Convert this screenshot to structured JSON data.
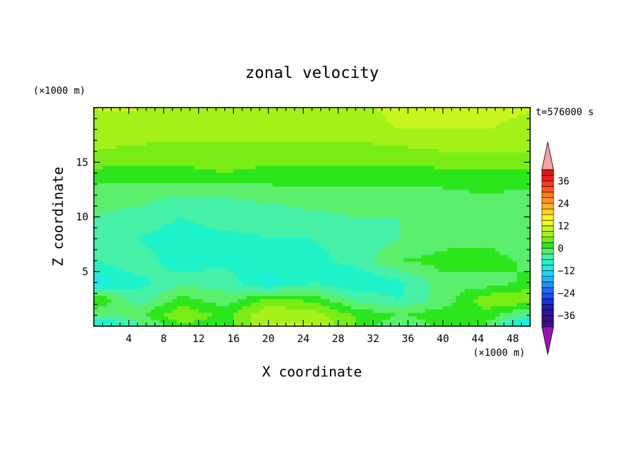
{
  "chart_data": {
    "type": "heatmap",
    "title": "zonal velocity",
    "xlabel": "X coordinate",
    "ylabel": "Z coordinate",
    "x_unit": "(×1000 m)",
    "y_unit": "(×1000 m)",
    "time_label": "t=576000 s",
    "xlim": [
      0,
      50
    ],
    "ylim": [
      0,
      20
    ],
    "x_ticks": [
      4,
      8,
      12,
      16,
      20,
      24,
      28,
      32,
      36,
      40,
      44,
      48
    ],
    "y_ticks": [
      5,
      10,
      15
    ],
    "colorbar": {
      "levels": [
        -42,
        -39,
        -36,
        -33,
        -30,
        -27,
        -24,
        -21,
        -18,
        -15,
        -12,
        -9,
        -6,
        -3,
        0,
        3,
        6,
        9,
        12,
        15,
        18,
        21,
        24,
        27,
        30,
        33,
        36,
        39,
        42
      ],
      "tick_labels": [
        "36",
        "24",
        "12",
        "0",
        "−12",
        "−24",
        "−36"
      ],
      "tick_values": [
        36,
        24,
        12,
        0,
        -12,
        -24,
        -36
      ],
      "extend": "both",
      "over_color": "#f4a3a3",
      "under_color": "#9a13b0"
    },
    "field": {
      "x_coords": [
        0,
        5,
        10,
        15,
        20,
        25,
        30,
        35,
        40,
        45,
        50
      ],
      "z_coords": [
        0.3,
        1,
        2.5,
        4,
        6,
        8,
        10,
        12,
        14,
        16,
        18,
        19.8
      ],
      "values": [
        [
          -10,
          -4,
          3,
          1,
          9,
          9,
          3,
          -3,
          1,
          0,
          -12
        ],
        [
          -3,
          -1,
          6,
          2,
          9,
          8,
          3,
          0,
          2,
          2,
          -5
        ],
        [
          4,
          -5,
          1,
          -2,
          4,
          2,
          -4,
          -6,
          -2,
          5,
          6
        ],
        [
          -11,
          -7,
          -4,
          -4,
          -10,
          -6,
          -9,
          -7,
          -1,
          -2,
          1
        ],
        [
          -6,
          -4,
          -8,
          -7,
          -7,
          -7,
          -5,
          0,
          1,
          2,
          -1
        ],
        [
          -5,
          -6,
          -8,
          -7,
          -6,
          -6,
          -5,
          -3,
          -1,
          -1,
          -3
        ],
        [
          -3,
          -4,
          -6,
          -4,
          -5,
          -4,
          -3,
          -3,
          -2,
          -2,
          -2
        ],
        [
          -2,
          -2,
          -3,
          -3,
          -2,
          -1,
          -1,
          -1,
          -1,
          0,
          -1
        ],
        [
          2,
          2,
          2,
          3,
          2,
          2,
          2,
          2,
          2,
          2,
          2
        ],
        [
          6,
          5,
          5,
          5,
          5,
          5,
          5,
          5,
          6,
          6,
          6
        ],
        [
          8,
          8,
          7,
          7,
          7,
          7,
          7,
          9,
          9,
          9,
          8
        ],
        [
          9,
          9,
          8,
          8,
          8,
          8,
          8,
          10,
          10,
          10,
          9
        ]
      ]
    }
  }
}
